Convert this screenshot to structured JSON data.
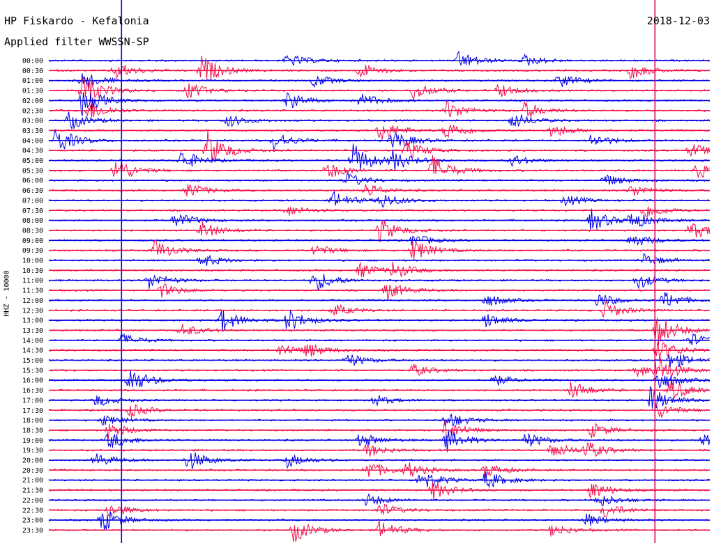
{
  "header": {
    "station": "HP Fiskardo - Kefalonia",
    "filter": "Applied filter WWSSN-SP",
    "date": "2018-12-03"
  },
  "axis": {
    "channel_label": "HHZ - 10000"
  },
  "colors": {
    "trace_a": "#0000e6",
    "trace_b": "#f0104a",
    "marker": "#e0005a"
  },
  "chart_data": {
    "type": "line",
    "title": "HP Fiskardo - Kefalonia",
    "subtitle": "Applied filter WWSSN-SP",
    "ylabel": "HHZ - 10000",
    "row_labels": [
      "00:00",
      "00:30",
      "01:00",
      "01:30",
      "02:00",
      "02:30",
      "03:00",
      "03:30",
      "04:00",
      "04:30",
      "05:00",
      "05:30",
      "06:00",
      "06:30",
      "07:00",
      "07:30",
      "08:00",
      "08:30",
      "09:00",
      "09:30",
      "10:00",
      "10:30",
      "11:00",
      "11:30",
      "12:00",
      "12:30",
      "13:00",
      "13:30",
      "14:00",
      "14:30",
      "15:00",
      "15:30",
      "16:00",
      "16:30",
      "17:00",
      "17:30",
      "18:00",
      "18:30",
      "19:00",
      "19:30",
      "20:00",
      "20:30",
      "21:00",
      "21:30",
      "22:00",
      "22:30",
      "23:00",
      "23:30"
    ],
    "row_colors": [
      "blue",
      "red"
    ],
    "events": [
      {
        "row": 0,
        "pos": 0.36,
        "amp": 1.2
      },
      {
        "row": 0,
        "pos": 0.62,
        "amp": 1.6
      },
      {
        "row": 0,
        "pos": 0.72,
        "amp": 1.0
      },
      {
        "row": 1,
        "pos": 0.1,
        "amp": 1.5
      },
      {
        "row": 1,
        "pos": 0.23,
        "amp": 2.5
      },
      {
        "row": 1,
        "pos": 0.47,
        "amp": 1.3
      },
      {
        "row": 1,
        "pos": 0.88,
        "amp": 1.4
      },
      {
        "row": 2,
        "pos": 0.05,
        "amp": 1.5
      },
      {
        "row": 2,
        "pos": 0.4,
        "amp": 1.1
      },
      {
        "row": 2,
        "pos": 0.77,
        "amp": 1.3
      },
      {
        "row": 3,
        "pos": 0.05,
        "amp": 3.0
      },
      {
        "row": 3,
        "pos": 0.21,
        "amp": 1.4
      },
      {
        "row": 3,
        "pos": 0.55,
        "amp": 1.6
      },
      {
        "row": 3,
        "pos": 0.68,
        "amp": 1.2
      },
      {
        "row": 4,
        "pos": 0.05,
        "amp": 2.6
      },
      {
        "row": 4,
        "pos": 0.36,
        "amp": 1.5
      },
      {
        "row": 4,
        "pos": 0.47,
        "amp": 1.3
      },
      {
        "row": 5,
        "pos": 0.06,
        "amp": 1.7
      },
      {
        "row": 5,
        "pos": 0.6,
        "amp": 1.8
      },
      {
        "row": 5,
        "pos": 0.72,
        "amp": 1.4
      },
      {
        "row": 6,
        "pos": 0.03,
        "amp": 1.6
      },
      {
        "row": 6,
        "pos": 0.7,
        "amp": 1.5
      },
      {
        "row": 6,
        "pos": 0.27,
        "amp": 1.1
      },
      {
        "row": 7,
        "pos": 0.5,
        "amp": 1.9
      },
      {
        "row": 7,
        "pos": 0.6,
        "amp": 1.6
      },
      {
        "row": 7,
        "pos": 0.76,
        "amp": 1.2
      },
      {
        "row": 8,
        "pos": 0.01,
        "amp": 2.4
      },
      {
        "row": 8,
        "pos": 0.34,
        "amp": 1.6
      },
      {
        "row": 8,
        "pos": 0.52,
        "amp": 1.8
      },
      {
        "row": 8,
        "pos": 0.82,
        "amp": 1.2
      },
      {
        "row": 9,
        "pos": 0.24,
        "amp": 3.2
      },
      {
        "row": 9,
        "pos": 0.54,
        "amp": 1.6
      },
      {
        "row": 9,
        "pos": 0.97,
        "amp": 1.2
      },
      {
        "row": 10,
        "pos": 0.2,
        "amp": 1.8
      },
      {
        "row": 10,
        "pos": 0.46,
        "amp": 2.8
      },
      {
        "row": 10,
        "pos": 0.52,
        "amp": 1.6
      },
      {
        "row": 10,
        "pos": 0.7,
        "amp": 1.0
      },
      {
        "row": 11,
        "pos": 0.1,
        "amp": 2.2
      },
      {
        "row": 11,
        "pos": 0.42,
        "amp": 1.5
      },
      {
        "row": 11,
        "pos": 0.58,
        "amp": 2.6
      },
      {
        "row": 11,
        "pos": 0.98,
        "amp": 1.4
      },
      {
        "row": 12,
        "pos": 0.45,
        "amp": 1.3
      },
      {
        "row": 12,
        "pos": 0.84,
        "amp": 1.1
      },
      {
        "row": 13,
        "pos": 0.21,
        "amp": 1.3
      },
      {
        "row": 13,
        "pos": 0.48,
        "amp": 1.2
      },
      {
        "row": 13,
        "pos": 0.88,
        "amp": 1.1
      },
      {
        "row": 14,
        "pos": 0.43,
        "amp": 1.5
      },
      {
        "row": 14,
        "pos": 0.5,
        "amp": 1.4
      },
      {
        "row": 14,
        "pos": 0.78,
        "amp": 1.0
      },
      {
        "row": 15,
        "pos": 0.9,
        "amp": 1.4
      },
      {
        "row": 15,
        "pos": 0.36,
        "amp": 1.0
      },
      {
        "row": 16,
        "pos": 0.19,
        "amp": 1.4
      },
      {
        "row": 16,
        "pos": 0.82,
        "amp": 1.9
      },
      {
        "row": 16,
        "pos": 0.88,
        "amp": 1.6
      },
      {
        "row": 17,
        "pos": 0.23,
        "amp": 1.5
      },
      {
        "row": 17,
        "pos": 0.5,
        "amp": 2.0
      },
      {
        "row": 17,
        "pos": 0.97,
        "amp": 1.6
      },
      {
        "row": 18,
        "pos": 0.88,
        "amp": 1.3
      },
      {
        "row": 18,
        "pos": 0.55,
        "amp": 1.1
      },
      {
        "row": 19,
        "pos": 0.16,
        "amp": 1.8
      },
      {
        "row": 19,
        "pos": 0.55,
        "amp": 1.9
      },
      {
        "row": 19,
        "pos": 0.4,
        "amp": 1.1
      },
      {
        "row": 20,
        "pos": 0.23,
        "amp": 1.2
      },
      {
        "row": 20,
        "pos": 0.9,
        "amp": 1.1
      },
      {
        "row": 21,
        "pos": 0.47,
        "amp": 1.3
      },
      {
        "row": 21,
        "pos": 0.52,
        "amp": 1.4
      },
      {
        "row": 22,
        "pos": 0.15,
        "amp": 1.5
      },
      {
        "row": 22,
        "pos": 0.4,
        "amp": 2.0
      },
      {
        "row": 22,
        "pos": 0.89,
        "amp": 1.4
      },
      {
        "row": 23,
        "pos": 0.17,
        "amp": 1.2
      },
      {
        "row": 23,
        "pos": 0.51,
        "amp": 1.6
      },
      {
        "row": 24,
        "pos": 0.66,
        "amp": 1.2
      },
      {
        "row": 24,
        "pos": 0.83,
        "amp": 1.3
      },
      {
        "row": 24,
        "pos": 0.93,
        "amp": 1.5
      },
      {
        "row": 25,
        "pos": 0.43,
        "amp": 1.1
      },
      {
        "row": 25,
        "pos": 0.84,
        "amp": 1.6
      },
      {
        "row": 26,
        "pos": 0.26,
        "amp": 2.0
      },
      {
        "row": 26,
        "pos": 0.36,
        "amp": 2.0
      },
      {
        "row": 26,
        "pos": 0.66,
        "amp": 1.3
      },
      {
        "row": 27,
        "pos": 0.2,
        "amp": 1.2
      },
      {
        "row": 27,
        "pos": 0.92,
        "amp": 2.8
      },
      {
        "row": 28,
        "pos": 0.11,
        "amp": 1.1
      },
      {
        "row": 28,
        "pos": 0.97,
        "amp": 1.2
      },
      {
        "row": 29,
        "pos": 0.35,
        "amp": 1.2
      },
      {
        "row": 29,
        "pos": 0.39,
        "amp": 1.1
      },
      {
        "row": 29,
        "pos": 0.92,
        "amp": 2.0
      },
      {
        "row": 30,
        "pos": 0.45,
        "amp": 1.3
      },
      {
        "row": 30,
        "pos": 0.94,
        "amp": 1.6
      },
      {
        "row": 31,
        "pos": 0.55,
        "amp": 1.1
      },
      {
        "row": 31,
        "pos": 0.89,
        "amp": 1.2
      },
      {
        "row": 31,
        "pos": 0.92,
        "amp": 2.2
      },
      {
        "row": 32,
        "pos": 0.12,
        "amp": 2.4
      },
      {
        "row": 32,
        "pos": 0.67,
        "amp": 1.1
      },
      {
        "row": 32,
        "pos": 0.92,
        "amp": 1.8
      },
      {
        "row": 33,
        "pos": 0.79,
        "amp": 1.6
      },
      {
        "row": 33,
        "pos": 0.94,
        "amp": 1.8
      },
      {
        "row": 34,
        "pos": 0.07,
        "amp": 1.1
      },
      {
        "row": 34,
        "pos": 0.49,
        "amp": 1.0
      },
      {
        "row": 34,
        "pos": 0.91,
        "amp": 2.2
      },
      {
        "row": 35,
        "pos": 0.12,
        "amp": 1.3
      },
      {
        "row": 35,
        "pos": 0.92,
        "amp": 1.4
      },
      {
        "row": 36,
        "pos": 0.6,
        "amp": 1.6
      },
      {
        "row": 36,
        "pos": 0.08,
        "amp": 1.0
      },
      {
        "row": 37,
        "pos": 0.09,
        "amp": 1.4
      },
      {
        "row": 37,
        "pos": 0.6,
        "amp": 1.8
      },
      {
        "row": 37,
        "pos": 0.82,
        "amp": 1.3
      },
      {
        "row": 38,
        "pos": 0.09,
        "amp": 1.6
      },
      {
        "row": 38,
        "pos": 0.47,
        "amp": 1.3
      },
      {
        "row": 38,
        "pos": 0.6,
        "amp": 2.0
      },
      {
        "row": 38,
        "pos": 0.72,
        "amp": 1.4
      },
      {
        "row": 38,
        "pos": 0.99,
        "amp": 1.4
      },
      {
        "row": 39,
        "pos": 0.48,
        "amp": 1.2
      },
      {
        "row": 39,
        "pos": 0.76,
        "amp": 1.4
      },
      {
        "row": 39,
        "pos": 0.81,
        "amp": 1.6
      },
      {
        "row": 40,
        "pos": 0.07,
        "amp": 1.2
      },
      {
        "row": 40,
        "pos": 0.21,
        "amp": 1.8
      },
      {
        "row": 40,
        "pos": 0.36,
        "amp": 1.2
      },
      {
        "row": 41,
        "pos": 0.48,
        "amp": 1.8
      },
      {
        "row": 41,
        "pos": 0.54,
        "amp": 1.3
      },
      {
        "row": 41,
        "pos": 0.66,
        "amp": 1.2
      },
      {
        "row": 42,
        "pos": 0.56,
        "amp": 2.0
      },
      {
        "row": 42,
        "pos": 0.66,
        "amp": 1.6
      },
      {
        "row": 43,
        "pos": 0.58,
        "amp": 1.6
      },
      {
        "row": 43,
        "pos": 0.82,
        "amp": 1.6
      },
      {
        "row": 44,
        "pos": 0.48,
        "amp": 1.1
      },
      {
        "row": 44,
        "pos": 0.83,
        "amp": 1.2
      },
      {
        "row": 45,
        "pos": 0.09,
        "amp": 1.3
      },
      {
        "row": 45,
        "pos": 0.5,
        "amp": 1.2
      },
      {
        "row": 45,
        "pos": 0.84,
        "amp": 1.3
      },
      {
        "row": 46,
        "pos": 0.08,
        "amp": 2.0
      },
      {
        "row": 46,
        "pos": 0.81,
        "amp": 1.2
      },
      {
        "row": 47,
        "pos": 0.37,
        "amp": 2.0
      },
      {
        "row": 47,
        "pos": 0.5,
        "amp": 1.6
      },
      {
        "row": 47,
        "pos": 0.76,
        "amp": 1.1
      }
    ],
    "markers": [
      {
        "type": "vertical",
        "color": "blue",
        "pos": 0.11
      },
      {
        "type": "vertical",
        "color": "red",
        "pos": 0.917
      }
    ]
  }
}
